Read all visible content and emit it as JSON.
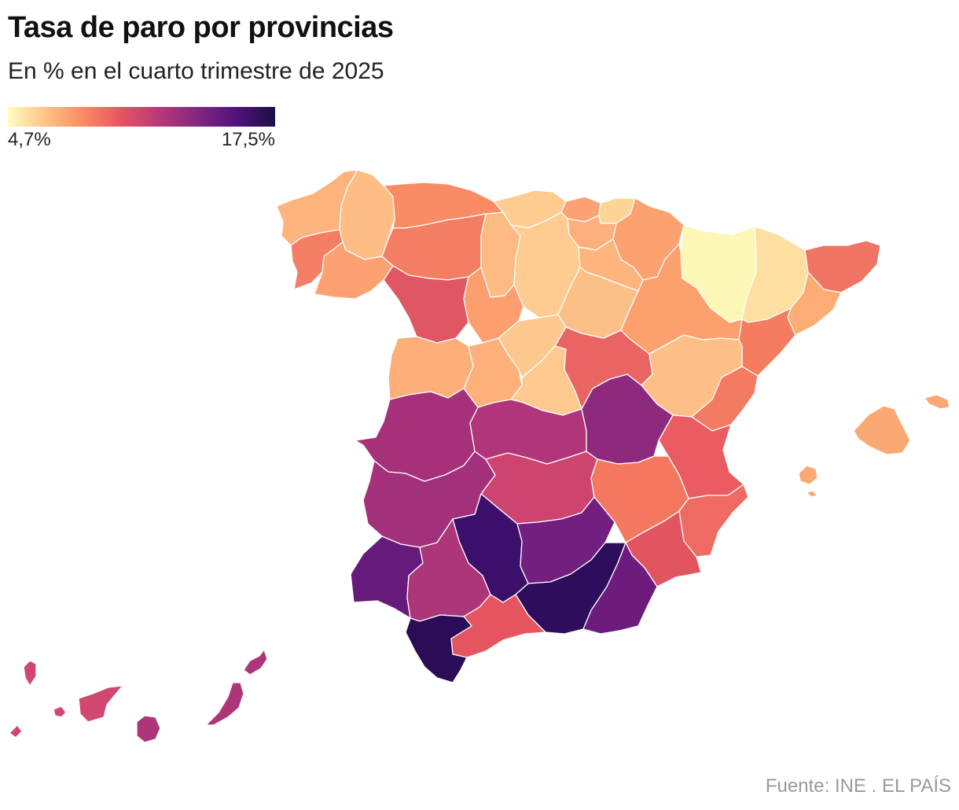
{
  "title": "Tasa de paro por provincias",
  "subtitle": "En % en el cuarto trimestre de 2025",
  "legend": {
    "min_label": "4,7%",
    "max_label": "17,5%",
    "min_value": 4.7,
    "max_value": 17.5,
    "color_scale": [
      "#fcfdbf",
      "#fec287",
      "#fb8861",
      "#e75263",
      "#b73779",
      "#822681",
      "#4f127b",
      "#1c1044"
    ]
  },
  "source": "Fuente: INE . EL PAÍS",
  "regions": [
    {
      "id": "a-coruna",
      "color": "#fdb37c"
    },
    {
      "id": "pontevedra",
      "color": "#f47e63"
    },
    {
      "id": "lugo",
      "color": "#fdbd84"
    },
    {
      "id": "ourense",
      "color": "#fca272"
    },
    {
      "id": "asturias",
      "color": "#f98b65"
    },
    {
      "id": "cantabria",
      "color": "#fecb90"
    },
    {
      "id": "bizkaia",
      "color": "#fca173"
    },
    {
      "id": "gipuzkoa",
      "color": "#fed496"
    },
    {
      "id": "alava",
      "color": "#fdb07b"
    },
    {
      "id": "navarra",
      "color": "#fca170"
    },
    {
      "id": "leon",
      "color": "#f47e63"
    },
    {
      "id": "palencia",
      "color": "#fdba82"
    },
    {
      "id": "burgos",
      "color": "#fecb90"
    },
    {
      "id": "la-rioja",
      "color": "#fdb47d"
    },
    {
      "id": "huesca",
      "color": "#fcf6b7"
    },
    {
      "id": "lleida",
      "color": "#fedfa2"
    },
    {
      "id": "girona",
      "color": "#f07463"
    },
    {
      "id": "barcelona",
      "color": "#fcac74"
    },
    {
      "id": "zamora",
      "color": "#e05763"
    },
    {
      "id": "valladolid",
      "color": "#fc9e6d"
    },
    {
      "id": "soria",
      "color": "#fdbf88"
    },
    {
      "id": "zaragoza",
      "color": "#fca06e"
    },
    {
      "id": "tarragona",
      "color": "#f57c5f"
    },
    {
      "id": "salamanca",
      "color": "#fdae79"
    },
    {
      "id": "avila",
      "color": "#fdb07a"
    },
    {
      "id": "segovia",
      "color": "#fdc88d"
    },
    {
      "id": "madrid",
      "color": "#fdc98e"
    },
    {
      "id": "guadalajara",
      "color": "#ea6463"
    },
    {
      "id": "teruel",
      "color": "#fdbf86"
    },
    {
      "id": "castellon",
      "color": "#f47a61"
    },
    {
      "id": "caceres",
      "color": "#a6317a"
    },
    {
      "id": "toledo",
      "color": "#b0357a"
    },
    {
      "id": "cuenca",
      "color": "#8e2a7e"
    },
    {
      "id": "valencia",
      "color": "#ea5c61"
    },
    {
      "id": "badajoz",
      "color": "#a3307b"
    },
    {
      "id": "ciudad-real",
      "color": "#cd4471"
    },
    {
      "id": "albacete",
      "color": "#f4775f"
    },
    {
      "id": "alicante",
      "color": "#ee6a62"
    },
    {
      "id": "murcia",
      "color": "#e35461"
    },
    {
      "id": "huelva",
      "color": "#661a7b"
    },
    {
      "id": "sevilla",
      "color": "#ad3579"
    },
    {
      "id": "cordoba",
      "color": "#3c0f6a"
    },
    {
      "id": "jaen",
      "color": "#721f7f"
    },
    {
      "id": "granada",
      "color": "#2e0d5d"
    },
    {
      "id": "almeria",
      "color": "#6d1c7e"
    },
    {
      "id": "malaga",
      "color": "#e5555f"
    },
    {
      "id": "cadiz",
      "color": "#2a0d56"
    },
    {
      "id": "mallorca",
      "color": "#fca874"
    },
    {
      "id": "menorca",
      "color": "#fca874"
    },
    {
      "id": "ibiza",
      "color": "#fca874"
    },
    {
      "id": "formentera",
      "color": "#fca874"
    },
    {
      "id": "la-palma",
      "color": "#d04870"
    },
    {
      "id": "el-hierro",
      "color": "#d04870"
    },
    {
      "id": "la-gomera",
      "color": "#d04870"
    },
    {
      "id": "tenerife",
      "color": "#d04870"
    },
    {
      "id": "gran-canaria",
      "color": "#ad3579"
    },
    {
      "id": "fuerteventura",
      "color": "#ad3579"
    },
    {
      "id": "lanzarote",
      "color": "#ad3579"
    }
  ]
}
